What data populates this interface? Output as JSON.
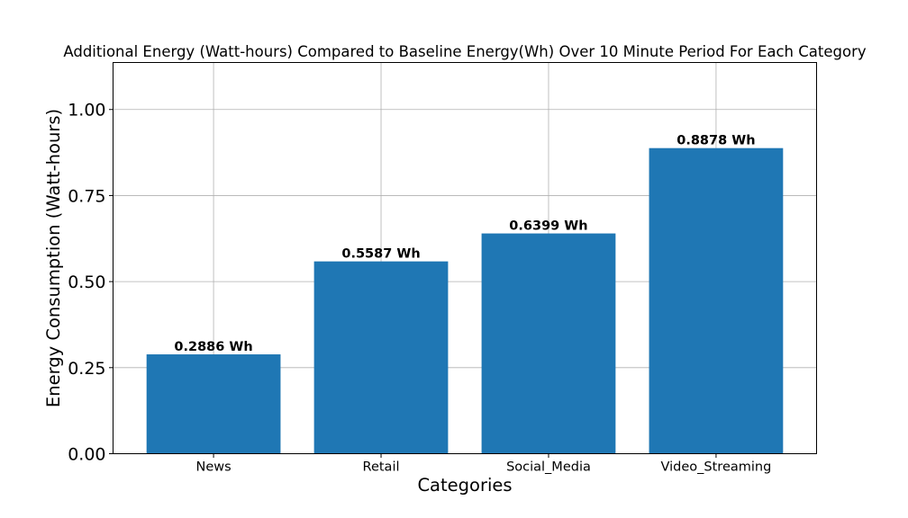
{
  "chart_data": {
    "type": "bar",
    "title": "Additional Energy (Watt-hours) Compared to Baseline Energy(Wh) Over 10 Minute Period For Each Category",
    "xlabel": "Categories",
    "ylabel": "Energy Consumption (Watt-hours)",
    "categories": [
      "News",
      "Retail",
      "Social_Media",
      "Video_Streaming"
    ],
    "values": [
      0.2886,
      0.5587,
      0.6399,
      0.8878
    ],
    "data_labels": [
      "0.2886 Wh",
      "0.5587 Wh",
      "0.6399 Wh",
      "0.8878 Wh"
    ],
    "ylim": [
      0,
      1.1365
    ],
    "yticks": [
      0.0,
      0.25,
      0.5,
      0.75,
      1.0
    ],
    "ytick_labels": [
      "0.00",
      "0.25",
      "0.50",
      "0.75",
      "1.00"
    ],
    "grid": true,
    "bar_color": "#1f77b4"
  }
}
